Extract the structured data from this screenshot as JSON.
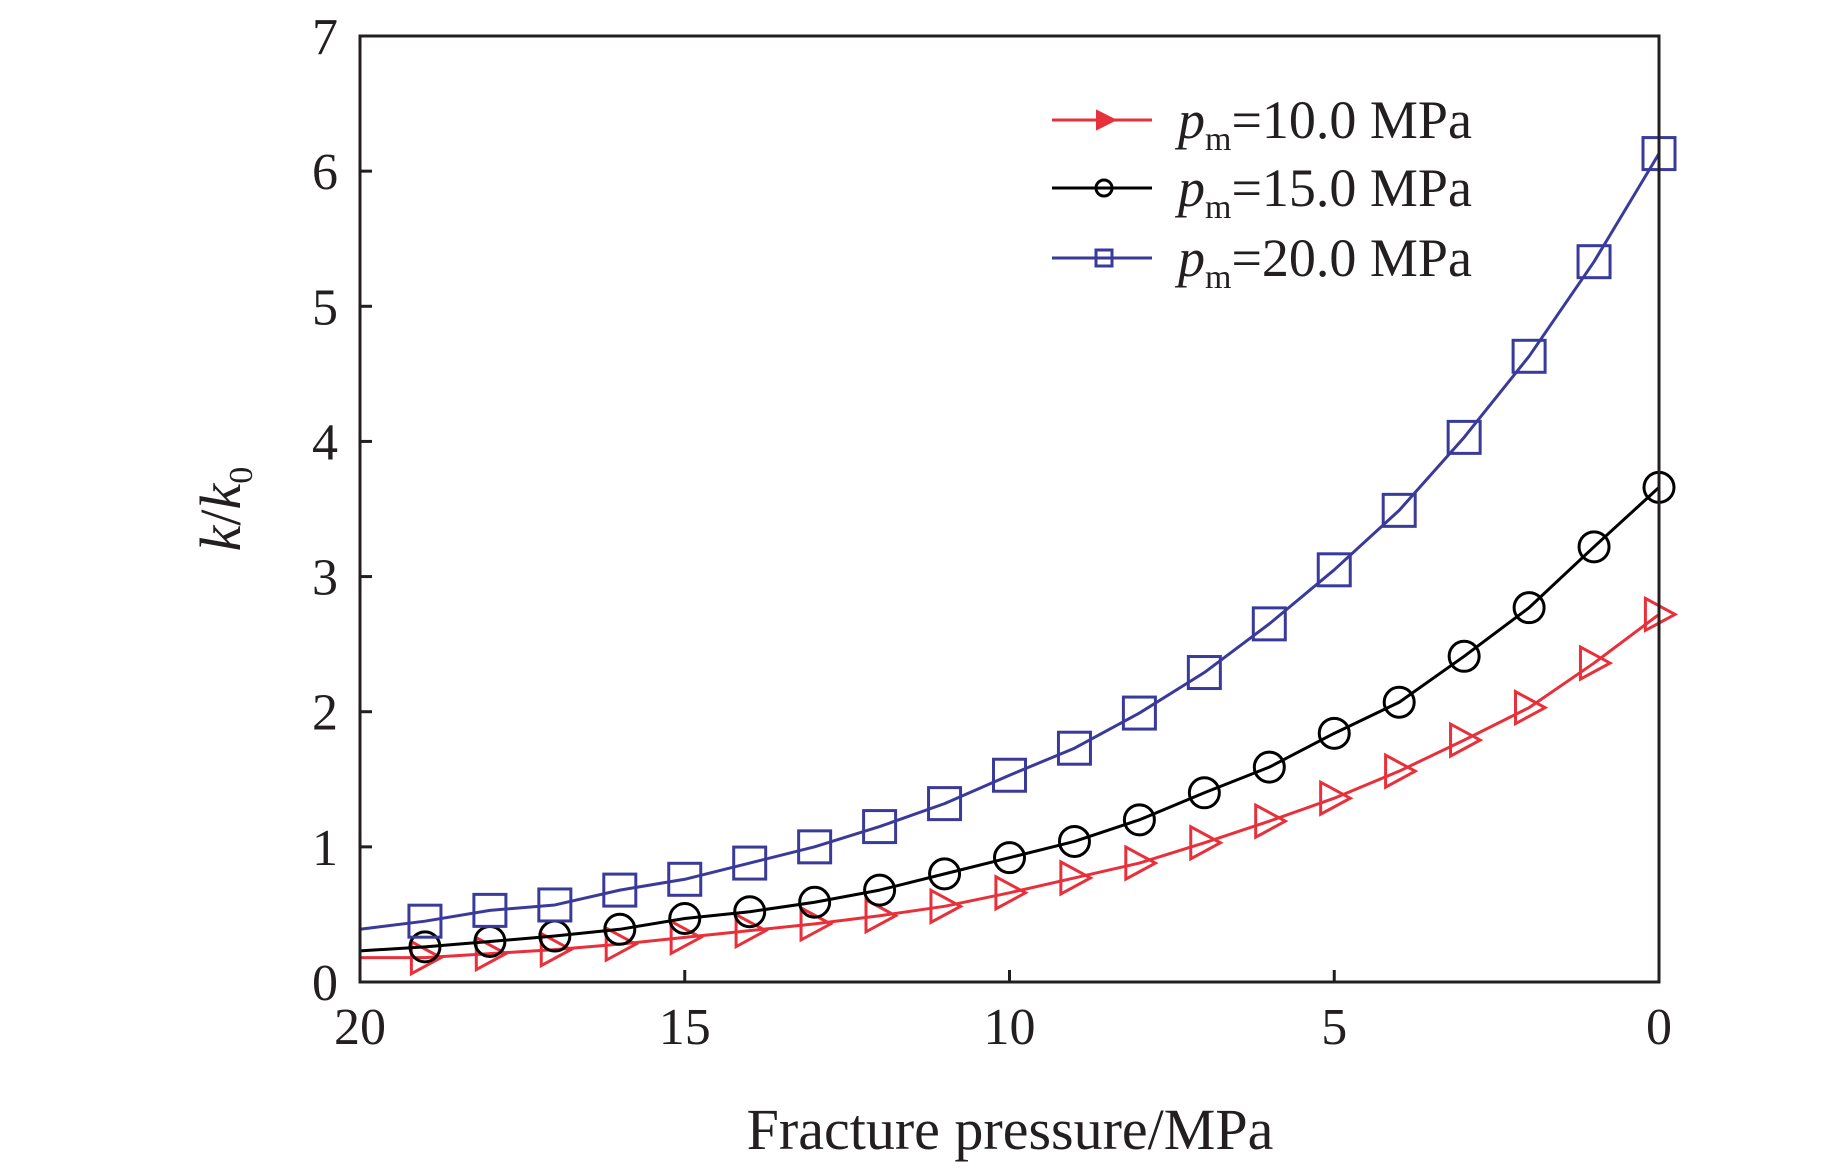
{
  "chart_data": {
    "type": "line",
    "title": "",
    "xlabel": "Fracture pressure/MPa",
    "ylabel": {
      "k1": "k",
      "slash": "/",
      "k2": "k",
      "sub": "0"
    },
    "xlim": [
      20,
      0
    ],
    "ylim": [
      0,
      7
    ],
    "x_reversed": true,
    "xticks": [
      "20",
      "15",
      "10",
      "5",
      "0"
    ],
    "xtick_values": [
      20,
      15,
      10,
      5,
      0
    ],
    "yticks": [
      "0",
      "1",
      "2",
      "3",
      "4",
      "5",
      "6",
      "7"
    ],
    "ytick_values": [
      0,
      1,
      2,
      3,
      4,
      5,
      6,
      7
    ],
    "grid": false,
    "legend_position": "top-right",
    "x": [
      19,
      18,
      17,
      16,
      15,
      14,
      13,
      12,
      11,
      10,
      9,
      8,
      7,
      6,
      5,
      4,
      3,
      2,
      1,
      0
    ],
    "series": [
      {
        "legend": {
          "p": "p",
          "sub": "m",
          "rest": "=10.0 MPa"
        },
        "marker": "triangle-right",
        "color": "#e8303a",
        "values": [
          0.18,
          0.21,
          0.24,
          0.28,
          0.33,
          0.38,
          0.43,
          0.49,
          0.56,
          0.66,
          0.77,
          0.88,
          1.03,
          1.19,
          1.36,
          1.56,
          1.79,
          2.03,
          2.36,
          2.72
        ],
        "curve_start": 0.18
      },
      {
        "legend": {
          "p": "p",
          "sub": "m",
          "rest": "=15.0 MPa"
        },
        "marker": "circle",
        "color": "#000000",
        "values": [
          0.26,
          0.3,
          0.34,
          0.39,
          0.47,
          0.52,
          0.59,
          0.68,
          0.8,
          0.92,
          1.04,
          1.2,
          1.4,
          1.59,
          1.84,
          2.07,
          2.41,
          2.77,
          3.22,
          3.66
        ],
        "curve_start": 0.23
      },
      {
        "legend": {
          "p": "p",
          "sub": "m",
          "rest": "=20.0 MPa"
        },
        "marker": "square",
        "color": "#3a3a9a",
        "values": [
          0.45,
          0.53,
          0.57,
          0.68,
          0.76,
          0.88,
          1.0,
          1.15,
          1.32,
          1.53,
          1.73,
          1.99,
          2.29,
          2.65,
          3.05,
          3.49,
          4.03,
          4.63,
          5.33,
          6.13
        ],
        "curve_start": 0.39
      }
    ]
  }
}
